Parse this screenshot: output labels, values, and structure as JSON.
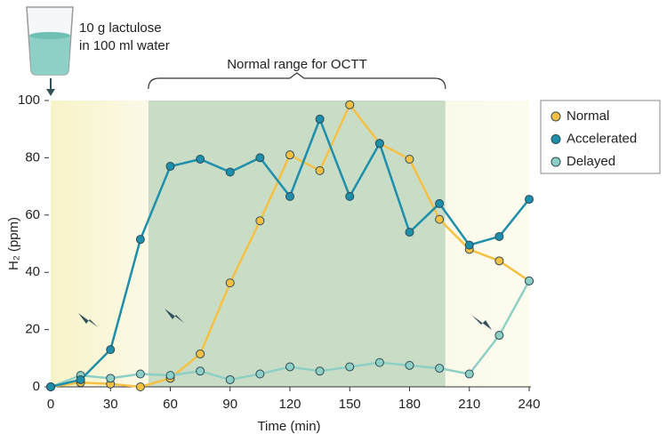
{
  "chart_data": {
    "type": "line",
    "annotation_lines": [
      "10 g lactulose",
      "in 100 ml water"
    ],
    "range_label": "Normal range for OCTT",
    "shaded_range": [
      49,
      198
    ],
    "x_label": "Time (min)",
    "y_label": "H₂ (ppm)",
    "x": [
      0,
      15,
      30,
      45,
      60,
      75,
      90,
      105,
      120,
      135,
      150,
      165,
      180,
      195,
      210,
      225,
      240
    ],
    "series": [
      {
        "name": "Normal",
        "color": "#f6c143",
        "values": [
          0,
          1.5,
          1,
          0,
          3,
          11.5,
          36.3,
          58,
          81,
          75.5,
          98.5,
          85,
          79.5,
          58.5,
          48,
          44,
          37
        ]
      },
      {
        "name": "Accelerated",
        "color": "#1e8fab",
        "values": [
          0,
          2.5,
          13,
          51.5,
          77,
          79.5,
          75,
          80,
          66.5,
          93.5,
          66.5,
          85,
          54,
          64,
          49.5,
          52.5,
          65.5
        ]
      },
      {
        "name": "Delayed",
        "color": "#8fd0c6",
        "values": [
          0,
          4,
          3,
          4.5,
          4,
          5.5,
          2.5,
          4.5,
          7,
          5.5,
          7,
          8.5,
          7.5,
          6.5,
          4.5,
          18,
          37
        ]
      }
    ],
    "xlim": [
      0,
      240
    ],
    "xticks": [
      0,
      30,
      60,
      90,
      120,
      150,
      180,
      210,
      240
    ],
    "ylim": [
      0,
      100
    ],
    "yticks": [
      0,
      20,
      40,
      60,
      80,
      100
    ],
    "legend": "upper right"
  }
}
